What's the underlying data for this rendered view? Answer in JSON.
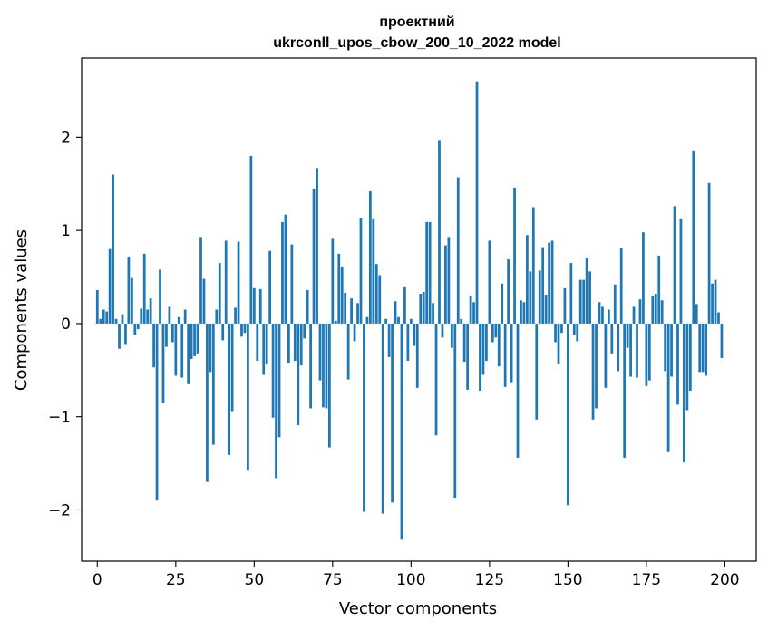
{
  "chart_data": {
    "type": "bar",
    "title": [
      "проектний",
      "ukrconll_upos_cbow_200_10_2022 model"
    ],
    "xlabel": "Vector components",
    "ylabel": "Components values",
    "xlim": [
      -5,
      210
    ],
    "ylim": [
      -2.55,
      2.85
    ],
    "x_ticks": [
      0,
      25,
      50,
      75,
      100,
      125,
      150,
      175,
      200
    ],
    "y_ticks": [
      -2,
      -1,
      0,
      1,
      2
    ],
    "x_tick_labels": [
      "0",
      "25",
      "50",
      "75",
      "100",
      "125",
      "150",
      "175",
      "200"
    ],
    "y_tick_labels": [
      "−2",
      "−1",
      "0",
      "1",
      "2"
    ],
    "grid": false,
    "bar_color": "#1f77b4",
    "x": [
      0,
      1,
      2,
      3,
      4,
      5,
      6,
      7,
      8,
      9,
      10,
      11,
      12,
      13,
      14,
      15,
      16,
      17,
      18,
      19,
      20,
      21,
      22,
      23,
      24,
      25,
      26,
      27,
      28,
      29,
      30,
      31,
      32,
      33,
      34,
      35,
      36,
      37,
      38,
      39,
      40,
      41,
      42,
      43,
      44,
      45,
      46,
      47,
      48,
      49,
      50,
      51,
      52,
      53,
      54,
      55,
      56,
      57,
      58,
      59,
      60,
      61,
      62,
      63,
      64,
      65,
      66,
      67,
      68,
      69,
      70,
      71,
      72,
      73,
      74,
      75,
      76,
      77,
      78,
      79,
      80,
      81,
      82,
      83,
      84,
      85,
      86,
      87,
      88,
      89,
      90,
      91,
      92,
      93,
      94,
      95,
      96,
      97,
      98,
      99,
      100,
      101,
      102,
      103,
      104,
      105,
      106,
      107,
      108,
      109,
      110,
      111,
      112,
      113,
      114,
      115,
      116,
      117,
      118,
      119,
      120,
      121,
      122,
      123,
      124,
      125,
      126,
      127,
      128,
      129,
      130,
      131,
      132,
      133,
      134,
      135,
      136,
      137,
      138,
      139,
      140,
      141,
      142,
      143,
      144,
      145,
      146,
      147,
      148,
      149,
      150,
      151,
      152,
      153,
      154,
      155,
      156,
      157,
      158,
      159,
      160,
      161,
      162,
      163,
      164,
      165,
      166,
      167,
      168,
      169,
      170,
      171,
      172,
      173,
      174,
      175,
      176,
      177,
      178,
      179,
      180,
      181,
      182,
      183,
      184,
      185,
      186,
      187,
      188,
      189,
      190,
      191,
      192,
      193,
      194,
      195,
      196,
      197,
      198,
      199
    ],
    "values": [
      0.36,
      0.05,
      0.15,
      0.13,
      0.8,
      1.6,
      0.05,
      -0.27,
      0.1,
      -0.22,
      0.72,
      0.49,
      -0.12,
      -0.06,
      0.16,
      0.75,
      0.15,
      0.27,
      -0.47,
      -1.9,
      0.58,
      -0.85,
      -0.25,
      0.18,
      -0.2,
      -0.56,
      0.07,
      -0.58,
      0.15,
      -0.65,
      -0.38,
      -0.35,
      -0.32,
      0.93,
      0.48,
      -1.7,
      -0.52,
      -1.3,
      0.15,
      0.65,
      -0.18,
      0.89,
      -1.41,
      -0.94,
      0.17,
      0.88,
      -0.14,
      -0.1,
      -1.57,
      1.8,
      0.38,
      -0.4,
      0.37,
      -0.55,
      -0.44,
      0.78,
      -1.01,
      -1.66,
      -1.22,
      1.09,
      1.17,
      -0.42,
      0.85,
      -0.4,
      -1.09,
      -0.45,
      -0.16,
      0.36,
      -0.91,
      1.45,
      1.67,
      -0.61,
      -0.9,
      -0.91,
      -1.33,
      0.91,
      0.03,
      0.75,
      0.61,
      0.33,
      -0.6,
      0.27,
      -0.19,
      0.22,
      1.13,
      -2.02,
      0.07,
      1.42,
      1.12,
      0.64,
      0.52,
      -2.04,
      0.05,
      -0.36,
      -1.92,
      0.24,
      0.07,
      -2.32,
      0.39,
      -0.4,
      0.05,
      -0.24,
      -0.69,
      0.32,
      0.34,
      1.09,
      1.09,
      0.22,
      -1.2,
      1.97,
      -0.15,
      0.84,
      0.93,
      -0.26,
      -1.87,
      1.57,
      0.05,
      -0.41,
      -0.71,
      0.3,
      0.23,
      2.6,
      -0.72,
      -0.55,
      -0.4,
      0.89,
      -0.2,
      -0.15,
      -0.46,
      0.43,
      -0.68,
      0.69,
      -0.63,
      1.46,
      -1.44,
      0.25,
      0.23,
      0.95,
      0.56,
      1.25,
      -1.03,
      0.57,
      0.82,
      0.31,
      0.87,
      0.89,
      -0.2,
      -0.43,
      -0.1,
      0.38,
      -1.95,
      0.65,
      -0.12,
      -0.19,
      0.47,
      0.47,
      0.7,
      0.56,
      -1.03,
      -0.91,
      0.23,
      0.18,
      -0.69,
      0.15,
      -0.32,
      0.42,
      -0.51,
      0.81,
      -1.44,
      -0.26,
      -0.57,
      0.18,
      -0.58,
      0.26,
      0.98,
      -0.67,
      -0.61,
      0.3,
      0.32,
      0.73,
      0.25,
      -0.51,
      -1.38,
      -0.57,
      1.26,
      -0.87,
      1.12,
      -1.49,
      -0.93,
      -0.72,
      1.85,
      0.21,
      -0.52,
      -0.52,
      -0.56,
      1.51,
      0.43,
      0.47,
      0.12,
      -0.37
    ]
  }
}
